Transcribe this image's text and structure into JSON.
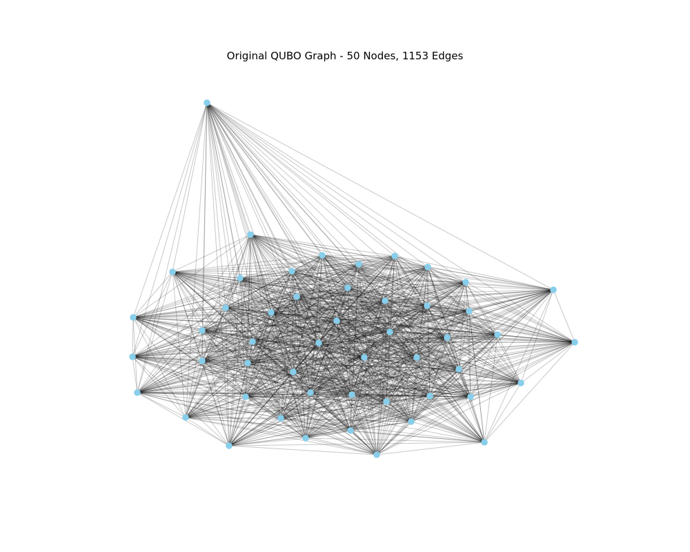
{
  "figure": {
    "title": "Original QUBO Graph - 50 Nodes, 1153 Edges"
  },
  "graph": {
    "node_count": 50,
    "edge_count": 1153,
    "node_color": "#87CEEB",
    "edge_color": "#000000"
  }
}
